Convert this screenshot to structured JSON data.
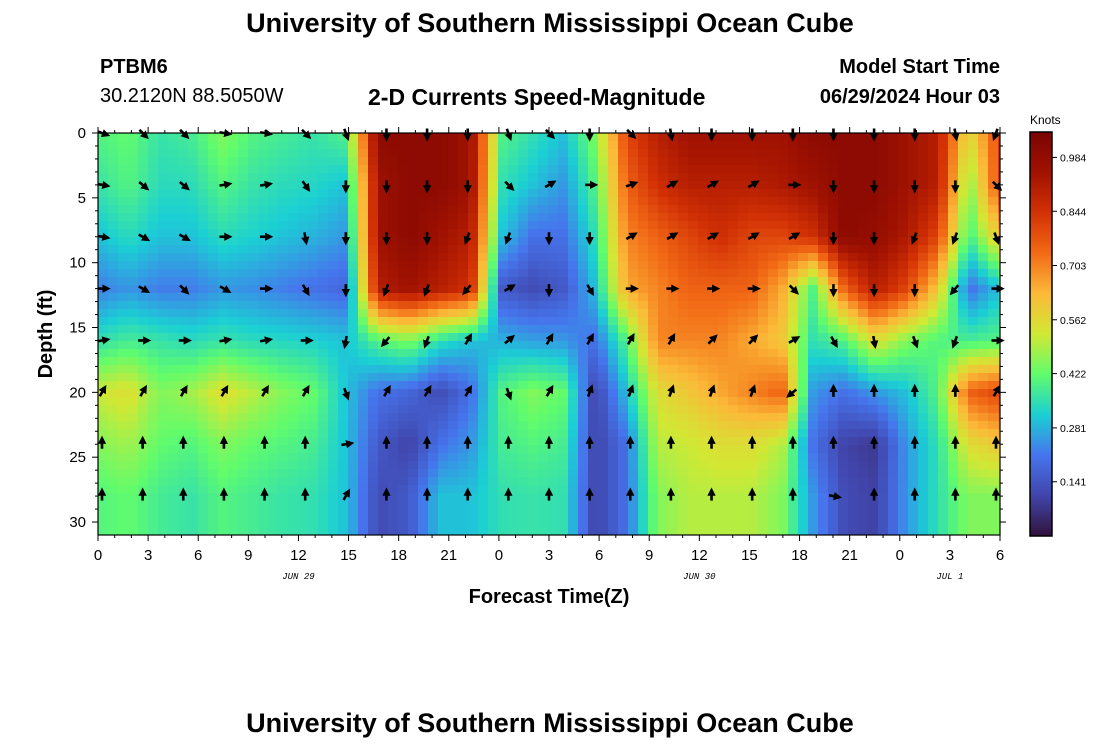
{
  "header": {
    "title": "University of Southern Mississippi Ocean Cube",
    "station": "PTBM6",
    "coordinates": "30.2120N  88.5050W",
    "product": "2-D Currents Speed-Magnitude",
    "model_start_label": "Model Start Time",
    "model_start_value": "06/29/2024 Hour 03"
  },
  "footer": {
    "title": "University of Southern Mississippi Ocean Cube"
  },
  "chart_data": {
    "type": "heatmap",
    "title": "2-D Currents Speed-Magnitude",
    "xlabel": "Forecast Time(Z)",
    "ylabel": "Depth (ft)",
    "x_ticks": [
      "0",
      "3",
      "6",
      "9",
      "12",
      "15",
      "18",
      "21",
      "0",
      "3",
      "6",
      "9",
      "12",
      "15",
      "18",
      "21",
      "0",
      "3",
      "6"
    ],
    "date_labels": [
      {
        "label": "JUN 29",
        "at_tick": 4
      },
      {
        "label": "JUN 30",
        "at_tick": 12
      },
      {
        "label": "JUL 1",
        "at_tick": 17
      }
    ],
    "y_ticks": [
      0,
      5,
      10,
      15,
      20,
      25,
      30
    ],
    "ylim": [
      0,
      31
    ],
    "y_inverted": true,
    "colorbar": {
      "label": "Knots",
      "ticks": [
        0.984,
        0.844,
        0.703,
        0.562,
        0.422,
        0.281,
        0.141
      ],
      "range": [
        0,
        1.05
      ]
    },
    "depth_rows_ft": [
      0,
      4,
      8,
      12,
      16,
      20,
      24,
      28
    ],
    "speed_grid": [
      [
        0.4,
        0.42,
        0.36,
        0.38,
        0.45,
        0.4,
        0.38,
        0.36,
        0.4,
        1.0,
        1.0,
        1.0,
        0.95,
        0.4,
        0.35,
        0.3,
        0.45,
        0.8,
        0.9,
        0.95,
        0.95,
        0.95,
        0.95,
        1.0,
        1.0,
        1.0,
        0.95,
        0.9,
        0.55,
        0.8
      ],
      [
        0.36,
        0.4,
        0.34,
        0.34,
        0.4,
        0.36,
        0.34,
        0.33,
        0.3,
        0.95,
        1.0,
        1.0,
        0.95,
        0.35,
        0.3,
        0.25,
        0.4,
        0.75,
        0.85,
        0.9,
        0.9,
        0.9,
        0.92,
        0.95,
        1.0,
        1.0,
        0.95,
        0.9,
        0.45,
        0.8
      ],
      [
        0.3,
        0.34,
        0.3,
        0.3,
        0.34,
        0.32,
        0.3,
        0.28,
        0.25,
        0.95,
        1.0,
        0.95,
        0.9,
        0.3,
        0.2,
        0.2,
        0.35,
        0.7,
        0.75,
        0.8,
        0.85,
        0.8,
        0.8,
        0.85,
        1.0,
        0.98,
        0.92,
        0.8,
        0.38,
        0.6
      ],
      [
        0.22,
        0.25,
        0.22,
        0.22,
        0.25,
        0.24,
        0.22,
        0.2,
        0.18,
        0.9,
        0.95,
        0.9,
        0.85,
        0.15,
        0.12,
        0.15,
        0.3,
        0.65,
        0.7,
        0.75,
        0.75,
        0.75,
        0.65,
        0.4,
        0.75,
        0.9,
        0.8,
        0.6,
        0.2,
        0.3
      ],
      [
        0.35,
        0.38,
        0.36,
        0.34,
        0.36,
        0.34,
        0.33,
        0.32,
        0.3,
        0.4,
        0.45,
        0.35,
        0.3,
        0.28,
        0.26,
        0.25,
        0.2,
        0.4,
        0.7,
        0.7,
        0.7,
        0.65,
        0.6,
        0.35,
        0.4,
        0.55,
        0.45,
        0.4,
        0.38,
        0.4
      ],
      [
        0.52,
        0.55,
        0.45,
        0.48,
        0.55,
        0.5,
        0.45,
        0.42,
        0.3,
        0.2,
        0.18,
        0.12,
        0.2,
        0.4,
        0.45,
        0.42,
        0.1,
        0.3,
        0.55,
        0.6,
        0.65,
        0.7,
        0.75,
        0.25,
        0.2,
        0.25,
        0.3,
        0.4,
        0.75,
        0.8
      ],
      [
        0.45,
        0.48,
        0.42,
        0.4,
        0.45,
        0.42,
        0.4,
        0.38,
        0.3,
        0.15,
        0.1,
        0.2,
        0.25,
        0.38,
        0.4,
        0.38,
        0.1,
        0.2,
        0.5,
        0.52,
        0.55,
        0.55,
        0.5,
        0.2,
        0.1,
        0.08,
        0.25,
        0.35,
        0.55,
        0.6
      ],
      [
        0.4,
        0.42,
        0.38,
        0.36,
        0.4,
        0.38,
        0.36,
        0.35,
        0.3,
        0.12,
        0.15,
        0.3,
        0.3,
        0.35,
        0.36,
        0.35,
        0.1,
        0.2,
        0.45,
        0.5,
        0.5,
        0.5,
        0.45,
        0.25,
        0.12,
        0.1,
        0.25,
        0.35,
        0.45,
        0.45
      ]
    ],
    "vector_rows_ft": [
      0,
      4,
      8,
      12,
      16,
      20,
      24,
      28
    ],
    "vector_directions_deg": [
      [
        110,
        135,
        135,
        100,
        100,
        135,
        160,
        180,
        180,
        180,
        160,
        135,
        180,
        135,
        170,
        180,
        180,
        180,
        180,
        180,
        180,
        170,
        200
      ],
      [
        100,
        130,
        130,
        80,
        80,
        145,
        180,
        180,
        180,
        180,
        135,
        60,
        90,
        70,
        60,
        60,
        60,
        90,
        180,
        180,
        180,
        180,
        135
      ],
      [
        100,
        120,
        120,
        90,
        90,
        170,
        180,
        180,
        180,
        200,
        200,
        180,
        180,
        60,
        60,
        60,
        60,
        60,
        180,
        180,
        200,
        200,
        160
      ],
      [
        90,
        120,
        135,
        120,
        90,
        150,
        180,
        200,
        200,
        220,
        60,
        180,
        150,
        90,
        90,
        90,
        90,
        135,
        180,
        180,
        180,
        220,
        90
      ],
      [
        80,
        90,
        90,
        80,
        80,
        90,
        190,
        220,
        200,
        30,
        50,
        30,
        30,
        30,
        30,
        45,
        45,
        60,
        150,
        170,
        160,
        200,
        90
      ],
      [
        30,
        30,
        30,
        30,
        30,
        30,
        160,
        30,
        30,
        30,
        160,
        30,
        20,
        20,
        20,
        20,
        20,
        230,
        0,
        0,
        0,
        0,
        30
      ],
      [
        0,
        0,
        0,
        0,
        0,
        0,
        80,
        0,
        0,
        0,
        0,
        0,
        0,
        0,
        0,
        0,
        0,
        0,
        0,
        0,
        0,
        0,
        0
      ],
      [
        0,
        0,
        0,
        0,
        0,
        0,
        30,
        0,
        0,
        0,
        0,
        0,
        0,
        0,
        0,
        0,
        0,
        0,
        100,
        0,
        0,
        0,
        0
      ]
    ]
  }
}
